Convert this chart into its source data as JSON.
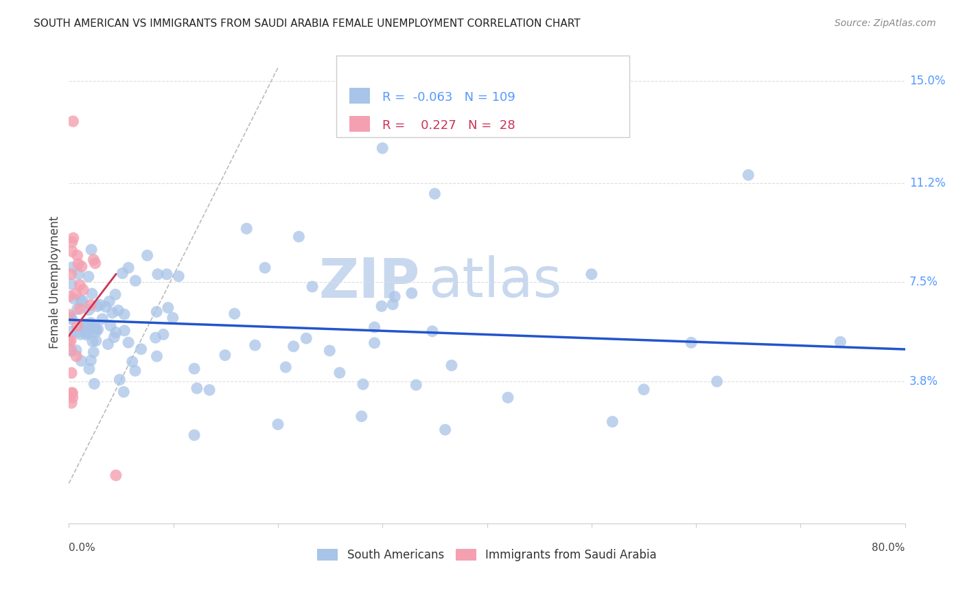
{
  "title": "SOUTH AMERICAN VS IMMIGRANTS FROM SAUDI ARABIA FEMALE UNEMPLOYMENT CORRELATION CHART",
  "source": "Source: ZipAtlas.com",
  "ylabel": "Female Unemployment",
  "xmin": 0.0,
  "xmax": 80.0,
  "ymin": -1.5,
  "ymax": 16.5,
  "ytick_vals": [
    3.8,
    7.5,
    11.2,
    15.0
  ],
  "ytick_labels": [
    "3.8%",
    "7.5%",
    "11.2%",
    "15.0%"
  ],
  "legend_blue_r": "-0.063",
  "legend_blue_n": "109",
  "legend_pink_r": "0.227",
  "legend_pink_n": "28",
  "blue_color": "#A8C4E8",
  "pink_color": "#F4A0B0",
  "blue_line_color": "#2255CC",
  "pink_line_color": "#CC3355",
  "watermark_zip_color": "#C8D8EE",
  "watermark_atlas_color": "#C8D8EE",
  "grid_color": "#DDDDDD",
  "axis_color": "#CCCCCC",
  "right_tick_color": "#5599FF",
  "title_color": "#222222",
  "source_color": "#888888",
  "blue_trend_x0": 0.0,
  "blue_trend_x1": 80.0,
  "blue_trend_y0": 6.1,
  "blue_trend_y1": 5.0,
  "pink_trend_x0": 0.0,
  "pink_trend_x1": 4.5,
  "pink_trend_y0": 5.5,
  "pink_trend_y1": 7.8,
  "diag_x0": 0.0,
  "diag_x1": 20.0,
  "diag_y0": 0.0,
  "diag_y1": 15.5
}
